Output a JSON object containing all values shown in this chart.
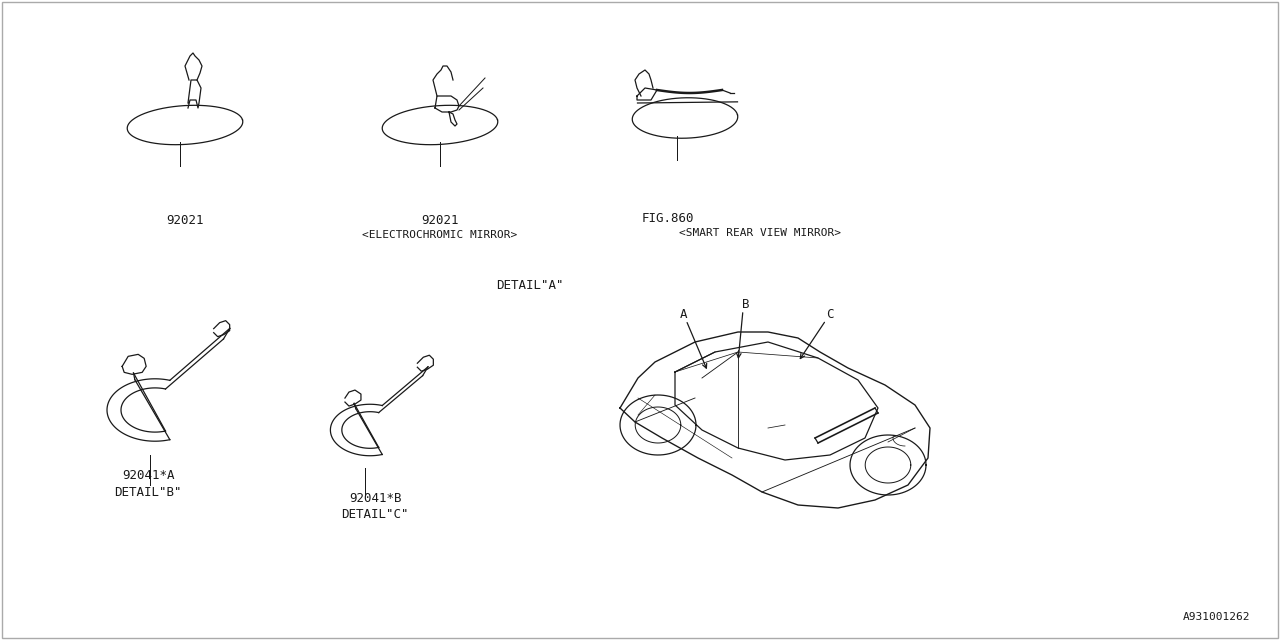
{
  "background_color": "#FFFFFF",
  "line_color": "#1a1a1a",
  "text_color": "#1a1a1a",
  "part_number_1": "92021",
  "part_number_2": "92021",
  "part_number_3": "FIG.860",
  "label_mirror2": "<ELECTROCHROMIC MIRROR>",
  "label_mirror3": "<SMART REAR VIEW MIRROR>",
  "part_number_4a": "92041*A",
  "part_number_4b": "92041*B",
  "label_detail_a": "DETAIL\"A\"",
  "label_detail_b": "DETAIL\"B\"",
  "label_detail_c": "DETAIL\"C\"",
  "diagram_id": "A931001262",
  "fig_width": 12.8,
  "fig_height": 6.4
}
